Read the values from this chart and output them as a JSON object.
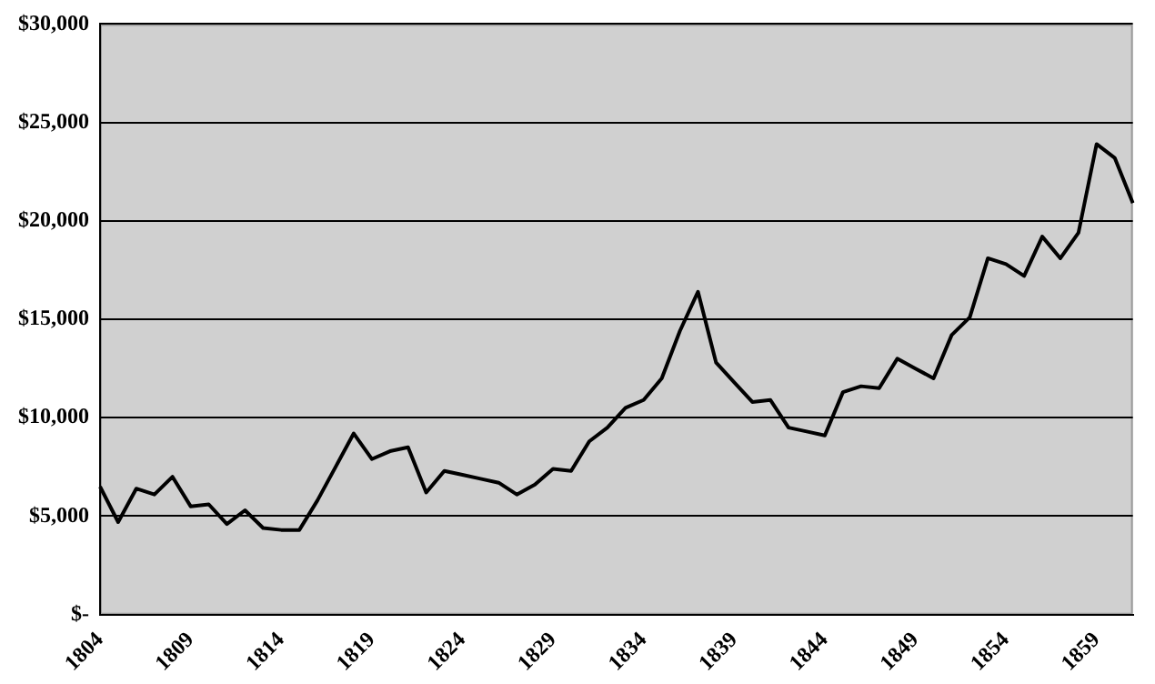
{
  "chart_data": {
    "type": "line",
    "categories": [
      "1804",
      null,
      null,
      null,
      null,
      "1809",
      null,
      null,
      null,
      null,
      "1814",
      null,
      null,
      null,
      null,
      "1819",
      null,
      null,
      null,
      null,
      "1824",
      null,
      null,
      null,
      null,
      "1829",
      null,
      null,
      null,
      null,
      "1834",
      null,
      null,
      null,
      null,
      "1839",
      null,
      null,
      null,
      null,
      "1844",
      null,
      null,
      null,
      null,
      "1849",
      null,
      null,
      null,
      null,
      "1854",
      null,
      null,
      null,
      null,
      "1859",
      null,
      null
    ],
    "series": [
      {
        "color": "#000000",
        "values": [
          6500,
          4700,
          6400,
          6100,
          7000,
          5500,
          5600,
          4600,
          5300,
          4400,
          4300,
          4300,
          5800,
          7500,
          9200,
          7900,
          8300,
          8500,
          6200,
          7300,
          7100,
          6900,
          6700,
          6100,
          6600,
          7400,
          7300,
          8800,
          9500,
          10500,
          10900,
          12000,
          14400,
          16400,
          12800,
          11800,
          10800,
          10900,
          9500,
          9300,
          9100,
          11300,
          11600,
          11500,
          13000,
          12500,
          12000,
          14200,
          15100,
          18100,
          17800,
          17200,
          19200,
          18100,
          19400,
          23900,
          23200,
          20900
        ]
      }
    ],
    "ylim": [
      0,
      30000
    ],
    "yticks": [
      {
        "value": 0,
        "label": "$-"
      },
      {
        "value": 5000,
        "label": "$5,000"
      },
      {
        "value": 10000,
        "label": "$10,000"
      },
      {
        "value": 15000,
        "label": "$15,000"
      },
      {
        "value": 20000,
        "label": "$20,000"
      },
      {
        "value": 25000,
        "label": "$25,000"
      },
      {
        "value": 30000,
        "label": "$30,000"
      }
    ],
    "grid": "y",
    "legend": false,
    "marker": "none",
    "line_style": "solid"
  }
}
